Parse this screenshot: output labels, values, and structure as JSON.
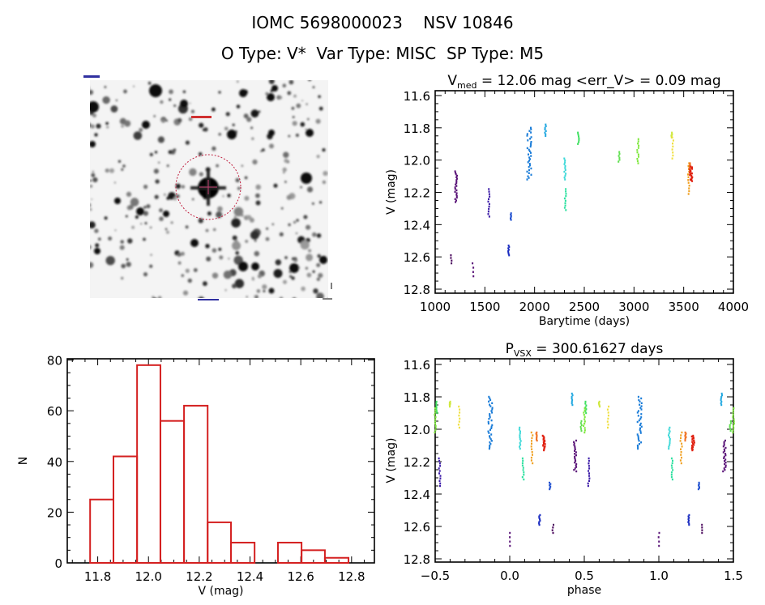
{
  "header": {
    "title": "IOMC 5698000023    NSV 10846",
    "subtitle": "O Type: V*  Var Type: MISC  SP Type: M5"
  },
  "chart_data": [
    {
      "id": "lightcurve",
      "type": "scatter",
      "title_main": "V",
      "title_sub": "med",
      "title_rest": " = 12.06 mag <err_V> = 0.09 mag",
      "xlabel": "Barytime (days)",
      "ylabel": "V (mag)",
      "xlim": [
        1000,
        4000
      ],
      "ylim": [
        12.825,
        11.57
      ],
      "xticks": [
        "1000",
        "1500",
        "2000",
        "2500",
        "3000",
        "3500",
        "4000"
      ],
      "yticks": [
        "11.6",
        "11.8",
        "12.0",
        "12.2",
        "12.4",
        "12.6",
        "12.8"
      ],
      "groups": [
        {
          "t": 1160,
          "phase": 0.29,
          "vmin": 12.59,
          "vmax": 12.64,
          "n": 4,
          "color": "#4b0a5e"
        },
        {
          "t": 1210,
          "phase": 0.44,
          "vmin": 12.07,
          "vmax": 12.26,
          "n": 22,
          "color": "#5a1478"
        },
        {
          "t": 1380,
          "phase": 0.0,
          "vmin": 12.64,
          "vmax": 12.72,
          "n": 4,
          "color": "#5a1478"
        },
        {
          "t": 1540,
          "phase": 0.53,
          "vmin": 12.18,
          "vmax": 12.35,
          "n": 12,
          "color": "#3c1ca8"
        },
        {
          "t": 1740,
          "phase": 0.2,
          "vmin": 12.53,
          "vmax": 12.59,
          "n": 8,
          "color": "#1a2cc0"
        },
        {
          "t": 1760,
          "phase": 0.27,
          "vmin": 12.33,
          "vmax": 12.37,
          "n": 6,
          "color": "#2050d0"
        },
        {
          "t": 1945,
          "phase": 0.87,
          "vmin": 11.8,
          "vmax": 12.12,
          "n": 34,
          "color": "#1a7cd8"
        },
        {
          "t": 2110,
          "phase": 0.42,
          "vmin": 11.78,
          "vmax": 11.85,
          "n": 8,
          "color": "#22a8e0"
        },
        {
          "t": 2305,
          "phase": 0.07,
          "vmin": 11.99,
          "vmax": 12.12,
          "n": 12,
          "color": "#3cd8d8"
        },
        {
          "t": 2310,
          "phase": 0.09,
          "vmin": 12.18,
          "vmax": 12.31,
          "n": 10,
          "color": "#2ee0a0"
        },
        {
          "t": 2440,
          "phase": 0.51,
          "vmin": 11.83,
          "vmax": 11.9,
          "n": 7,
          "color": "#3ee060"
        },
        {
          "t": 2850,
          "phase": 0.48,
          "vmin": 11.95,
          "vmax": 12.01,
          "n": 6,
          "color": "#60e050"
        },
        {
          "t": 3040,
          "phase": 0.5,
          "vmin": 11.87,
          "vmax": 12.02,
          "n": 12,
          "color": "#80e840"
        },
        {
          "t": 3380,
          "phase": 0.6,
          "vmin": 11.83,
          "vmax": 11.86,
          "n": 6,
          "color": "#d0e840"
        },
        {
          "t": 3390,
          "phase": 0.66,
          "vmin": 11.86,
          "vmax": 11.99,
          "n": 8,
          "color": "#f0e040"
        },
        {
          "t": 3550,
          "phase": 0.15,
          "vmin": 12.02,
          "vmax": 12.21,
          "n": 12,
          "color": "#f0a020"
        },
        {
          "t": 3560,
          "phase": 0.18,
          "vmin": 12.02,
          "vmax": 12.07,
          "n": 8,
          "color": "#f07020"
        },
        {
          "t": 3575,
          "phase": 0.23,
          "vmin": 12.04,
          "vmax": 12.13,
          "n": 20,
          "color": "#e02010"
        }
      ]
    },
    {
      "id": "histogram",
      "type": "bar",
      "xlabel": "V (mag)",
      "ylabel": "N",
      "xlim": [
        11.68,
        12.89
      ],
      "ylim": [
        0,
        80.5
      ],
      "xticks": [
        "11.8",
        "12.0",
        "12.2",
        "12.4",
        "12.6",
        "12.8"
      ],
      "yticks": [
        "0",
        "20",
        "40",
        "60",
        "80"
      ],
      "bin_edges": [
        11.77,
        11.862,
        11.955,
        12.047,
        12.14,
        12.233,
        12.325,
        12.418,
        12.51,
        12.603,
        12.695,
        12.788
      ],
      "values": [
        25,
        42,
        78,
        56,
        62,
        16,
        8,
        0,
        8,
        5,
        2
      ],
      "color": "#d42020"
    },
    {
      "id": "phased",
      "type": "scatter",
      "title_main": "P",
      "title_sub": "VSX",
      "title_rest": " = 300.61627 days",
      "xlabel": "phase",
      "ylabel": "V (mag)",
      "xlim": [
        -0.5,
        1.5
      ],
      "ylim": [
        12.82,
        11.565
      ],
      "xticks": [
        "-0.5",
        "0.0",
        "0.5",
        "1.0",
        "1.5"
      ],
      "yticks": [
        "11.6",
        "11.8",
        "12.0",
        "12.2",
        "12.4",
        "12.6",
        "12.8"
      ]
    }
  ]
}
